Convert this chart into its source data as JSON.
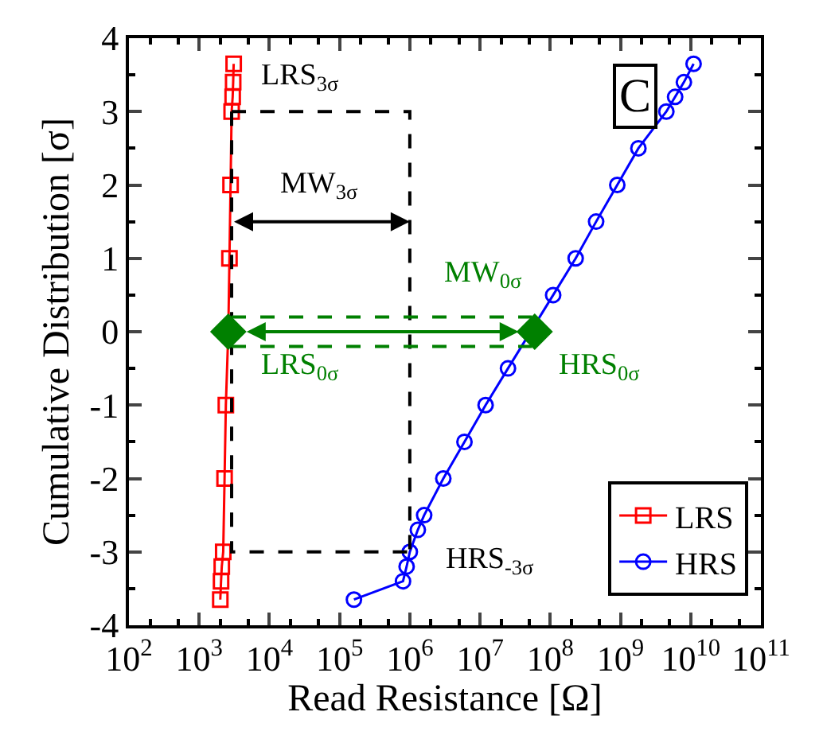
{
  "chart_data": {
    "type": "line",
    "xlabel": "Read Resistance [Ω]",
    "ylabel": "Cumulative Distribution [σ]",
    "log": "x",
    "grid": false,
    "legend": "bottom right",
    "xlim": [
      100,
      100000000000
    ],
    "xticks": [
      {
        "value": 100,
        "label": "10$^{2}$"
      },
      {
        "value": 1000,
        "label": "10$^{3}$"
      },
      {
        "value": 10000,
        "label": "10$^{4}$"
      },
      {
        "value": 100000,
        "label": "10$^{5}$"
      },
      {
        "value": 1000000,
        "label": "10$^{6}$"
      },
      {
        "value": 10000000,
        "label": "10$^{7}$"
      },
      {
        "value": 100000000,
        "label": "10$^{8}$"
      },
      {
        "value": 1000000000,
        "label": "10$^{9}$"
      },
      {
        "value": 10000000000,
        "label": "10$^{10}$"
      },
      {
        "value": 100000000000,
        "label": "10$^{11}$"
      }
    ],
    "ylim": [
      -4,
      4
    ],
    "yticks": [
      -4,
      -3,
      -2,
      -1,
      0,
      1,
      2,
      3,
      4
    ],
    "series": [
      {
        "name": "LRS",
        "color": "#ff0000",
        "marker": "square",
        "line_style": "solid",
        "x": [
          2000,
          2050,
          2100,
          2200,
          2300,
          2400,
          2600,
          2700,
          2800,
          2900,
          3000,
          3050,
          3100
        ],
        "values": [
          -3.65,
          -3.4,
          -3.2,
          -3,
          -2,
          -1,
          0,
          1,
          2,
          3,
          3.2,
          3.4,
          3.65
        ]
      },
      {
        "name": "HRS",
        "color": "#0000ff",
        "marker": "circle",
        "line_style": "solid",
        "x": [
          160000,
          800000,
          900000,
          1000000,
          1300000,
          1600000,
          3000000,
          6000000,
          12000000,
          25000000,
          110000000,
          230000000,
          450000000,
          900000000,
          1800000000,
          4500000000,
          6000000000,
          8000000000,
          11000000000
        ],
        "values": [
          -3.65,
          -3.4,
          -3.2,
          -3,
          -2.7,
          -2.5,
          -2,
          -1.5,
          -1,
          -0.5,
          0.5,
          1,
          1.5,
          2,
          2.5,
          3,
          3.2,
          3.4,
          3.65
        ]
      },
      {
        "color": "#000000",
        "marker": "none",
        "line_style": "dashed",
        "x": [
          2900,
          1000000,
          1000000
        ],
        "values": [
          3,
          3,
          -3
        ]
      },
      {
        "color": "#000000",
        "marker": "none",
        "line_style": "dashed",
        "x": [
          2900,
          2900,
          1000000
        ],
        "values": [
          3,
          -3,
          -3
        ]
      },
      {
        "color": "#008000",
        "marker": "none",
        "line_style": "dashed",
        "x": [
          2900,
          55000000
        ],
        "values": [
          0.2,
          0.2
        ]
      },
      {
        "color": "#008000",
        "marker": "none",
        "line_style": "dashed",
        "x": [
          2900,
          55000000
        ],
        "values": [
          -0.2,
          -0.2
        ]
      },
      {
        "type": "scatter",
        "color": "#008000",
        "marker": "diamond",
        "x": [
          2600,
          60000000
        ],
        "values": [
          0,
          0
        ]
      }
    ],
    "annotations": [
      "C",
      "LRS$_{3σ}$",
      "MW$_{3σ}$",
      "MW$_{0σ}$",
      "LRS$_{0σ}$",
      "HRS$_{0σ}$",
      "HRS$_{-3σ}$"
    ]
  }
}
